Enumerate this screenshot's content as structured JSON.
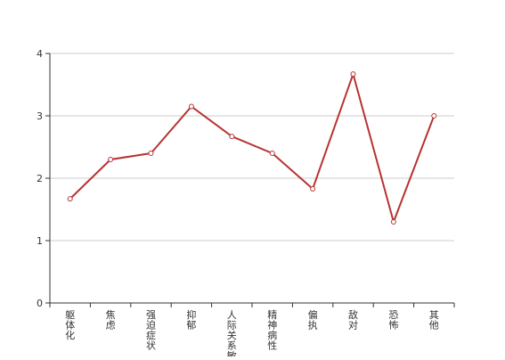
{
  "chart_data": {
    "type": "line",
    "categories": [
      "躯体化",
      "焦虑",
      "强迫症状",
      "抑郁",
      "人际关系敏感",
      "精神病性",
      "偏执",
      "敌对",
      "恐怖",
      "其他"
    ],
    "series": [
      {
        "values": [
          1.67,
          2.3,
          2.4,
          3.15,
          2.67,
          2.4,
          1.83,
          3.67,
          1.3,
          3.0
        ]
      }
    ],
    "title": "",
    "xlabel": "",
    "ylabel": "",
    "ylim": [
      0,
      4
    ],
    "yticks": [
      "0",
      "1",
      "2",
      "3",
      "4"
    ],
    "grid": true,
    "colors": {
      "line": "#b83232",
      "marker_fill": "#ffffff",
      "grid": "#cccccc",
      "axis": "#333333"
    }
  }
}
